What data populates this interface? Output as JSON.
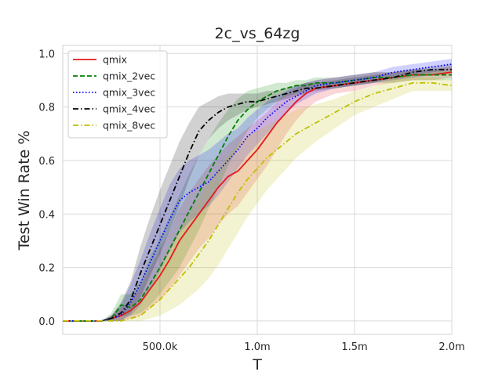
{
  "chart_data": {
    "type": "line",
    "title": "2c_vs_64zg",
    "xlabel": "T",
    "ylabel": "Test Win Rate %",
    "xlim": [
      0,
      2000000
    ],
    "ylim": [
      -0.05,
      1.03
    ],
    "grid": true,
    "x_ticks": [
      {
        "value": 500000,
        "label": "500.0k"
      },
      {
        "value": 1000000,
        "label": "1.0m"
      },
      {
        "value": 1500000,
        "label": "1.5m"
      },
      {
        "value": 2000000,
        "label": "2.0m"
      }
    ],
    "y_ticks": [
      {
        "value": 0.0,
        "label": "0.0"
      },
      {
        "value": 0.2,
        "label": "0.2"
      },
      {
        "value": 0.4,
        "label": "0.4"
      },
      {
        "value": 0.6,
        "label": "0.6"
      },
      {
        "value": 0.8,
        "label": "0.8"
      },
      {
        "value": 1.0,
        "label": "1.0"
      }
    ],
    "legend_position": "upper-left",
    "x": [
      0,
      100000,
      200000,
      250000,
      300000,
      350000,
      400000,
      450000,
      500000,
      550000,
      600000,
      650000,
      700000,
      750000,
      800000,
      850000,
      900000,
      950000,
      1000000,
      1050000,
      1100000,
      1150000,
      1200000,
      1250000,
      1300000,
      1400000,
      1500000,
      1600000,
      1700000,
      1800000,
      1900000,
      2000000
    ],
    "series": [
      {
        "name": "qmix",
        "color": "#e41a1c",
        "dash": "solid",
        "values": [
          0,
          0,
          0,
          0.01,
          0.02,
          0.04,
          0.07,
          0.12,
          0.17,
          0.23,
          0.3,
          0.35,
          0.4,
          0.45,
          0.5,
          0.54,
          0.56,
          0.6,
          0.64,
          0.69,
          0.74,
          0.78,
          0.82,
          0.85,
          0.87,
          0.88,
          0.89,
          0.9,
          0.91,
          0.92,
          0.92,
          0.93
        ],
        "lower": [
          0,
          0,
          0,
          0,
          0,
          0.01,
          0.02,
          0.05,
          0.08,
          0.12,
          0.17,
          0.22,
          0.27,
          0.31,
          0.36,
          0.4,
          0.43,
          0.48,
          0.53,
          0.58,
          0.64,
          0.7,
          0.75,
          0.79,
          0.82,
          0.85,
          0.86,
          0.88,
          0.89,
          0.9,
          0.9,
          0.91
        ],
        "upper": [
          0,
          0,
          0,
          0.02,
          0.05,
          0.08,
          0.13,
          0.2,
          0.27,
          0.34,
          0.42,
          0.48,
          0.53,
          0.58,
          0.62,
          0.66,
          0.69,
          0.72,
          0.75,
          0.78,
          0.82,
          0.85,
          0.87,
          0.89,
          0.9,
          0.91,
          0.92,
          0.93,
          0.93,
          0.94,
          0.94,
          0.95
        ]
      },
      {
        "name": "qmix_2vec",
        "color": "#007f00",
        "dash": "dashed",
        "values": [
          0,
          0,
          0,
          0.01,
          0.06,
          0.05,
          0.08,
          0.14,
          0.2,
          0.27,
          0.34,
          0.41,
          0.48,
          0.55,
          0.62,
          0.69,
          0.75,
          0.79,
          0.82,
          0.84,
          0.86,
          0.87,
          0.88,
          0.88,
          0.89,
          0.89,
          0.9,
          0.91,
          0.91,
          0.92,
          0.92,
          0.92
        ],
        "lower": [
          0,
          0,
          0,
          0,
          0.02,
          0.02,
          0.03,
          0.06,
          0.1,
          0.15,
          0.2,
          0.27,
          0.34,
          0.42,
          0.5,
          0.58,
          0.65,
          0.71,
          0.76,
          0.79,
          0.82,
          0.84,
          0.85,
          0.86,
          0.87,
          0.87,
          0.88,
          0.89,
          0.89,
          0.9,
          0.9,
          0.9
        ],
        "upper": [
          0,
          0,
          0,
          0.03,
          0.1,
          0.1,
          0.15,
          0.24,
          0.31,
          0.39,
          0.47,
          0.55,
          0.62,
          0.68,
          0.74,
          0.79,
          0.83,
          0.86,
          0.87,
          0.88,
          0.89,
          0.89,
          0.9,
          0.9,
          0.91,
          0.91,
          0.92,
          0.93,
          0.93,
          0.94,
          0.94,
          0.94
        ]
      },
      {
        "name": "qmix_3vec",
        "color": "#0000ff",
        "dash": "dotted",
        "values": [
          0,
          0,
          0,
          0.01,
          0.02,
          0.07,
          0.14,
          0.22,
          0.3,
          0.38,
          0.45,
          0.48,
          0.5,
          0.52,
          0.56,
          0.6,
          0.64,
          0.69,
          0.72,
          0.76,
          0.79,
          0.82,
          0.84,
          0.86,
          0.88,
          0.89,
          0.9,
          0.91,
          0.93,
          0.94,
          0.95,
          0.96
        ],
        "lower": [
          0,
          0,
          0,
          0,
          0,
          0.02,
          0.06,
          0.12,
          0.19,
          0.26,
          0.33,
          0.37,
          0.4,
          0.43,
          0.47,
          0.52,
          0.57,
          0.62,
          0.66,
          0.7,
          0.74,
          0.78,
          0.81,
          0.83,
          0.85,
          0.87,
          0.88,
          0.89,
          0.91,
          0.92,
          0.93,
          0.94
        ],
        "upper": [
          0,
          0,
          0,
          0.02,
          0.06,
          0.14,
          0.23,
          0.33,
          0.42,
          0.51,
          0.57,
          0.6,
          0.62,
          0.64,
          0.67,
          0.7,
          0.72,
          0.76,
          0.79,
          0.82,
          0.84,
          0.86,
          0.88,
          0.89,
          0.9,
          0.91,
          0.92,
          0.93,
          0.95,
          0.96,
          0.97,
          0.98
        ]
      },
      {
        "name": "qmix_4vec",
        "color": "#000000",
        "dash": "dashdot",
        "values": [
          0,
          0,
          0,
          0.01,
          0.03,
          0.08,
          0.18,
          0.27,
          0.36,
          0.45,
          0.54,
          0.63,
          0.71,
          0.75,
          0.78,
          0.8,
          0.81,
          0.82,
          0.82,
          0.83,
          0.84,
          0.85,
          0.86,
          0.87,
          0.87,
          0.88,
          0.89,
          0.9,
          0.91,
          0.93,
          0.94,
          0.94
        ],
        "lower": [
          0,
          0,
          0,
          0,
          0,
          0.03,
          0.09,
          0.17,
          0.25,
          0.34,
          0.43,
          0.53,
          0.62,
          0.68,
          0.72,
          0.75,
          0.77,
          0.79,
          0.8,
          0.81,
          0.82,
          0.83,
          0.84,
          0.85,
          0.86,
          0.87,
          0.88,
          0.89,
          0.9,
          0.91,
          0.92,
          0.93
        ],
        "upper": [
          0,
          0,
          0,
          0.02,
          0.07,
          0.15,
          0.28,
          0.39,
          0.49,
          0.58,
          0.67,
          0.74,
          0.8,
          0.82,
          0.84,
          0.85,
          0.85,
          0.85,
          0.85,
          0.86,
          0.86,
          0.87,
          0.88,
          0.89,
          0.89,
          0.9,
          0.91,
          0.92,
          0.93,
          0.94,
          0.95,
          0.96
        ]
      },
      {
        "name": "qmix_8vec",
        "color": "#bfbf00",
        "dash": "dashdot",
        "values": [
          0,
          0,
          0,
          0,
          0,
          0.01,
          0.02,
          0.05,
          0.08,
          0.12,
          0.16,
          0.2,
          0.25,
          0.3,
          0.36,
          0.42,
          0.48,
          0.53,
          0.57,
          0.61,
          0.64,
          0.67,
          0.7,
          0.72,
          0.74,
          0.78,
          0.82,
          0.85,
          0.87,
          0.89,
          0.89,
          0.88
        ],
        "lower": [
          0,
          0,
          0,
          0,
          0,
          0,
          0,
          0.01,
          0.02,
          0.04,
          0.06,
          0.09,
          0.12,
          0.16,
          0.21,
          0.27,
          0.33,
          0.39,
          0.44,
          0.49,
          0.53,
          0.57,
          0.61,
          0.64,
          0.67,
          0.72,
          0.77,
          0.8,
          0.83,
          0.86,
          0.86,
          0.86
        ],
        "upper": [
          0,
          0,
          0,
          0.01,
          0.02,
          0.04,
          0.08,
          0.13,
          0.2,
          0.27,
          0.34,
          0.4,
          0.46,
          0.52,
          0.57,
          0.62,
          0.66,
          0.69,
          0.71,
          0.73,
          0.75,
          0.77,
          0.79,
          0.8,
          0.81,
          0.83,
          0.86,
          0.88,
          0.9,
          0.91,
          0.91,
          0.9
        ]
      }
    ]
  }
}
